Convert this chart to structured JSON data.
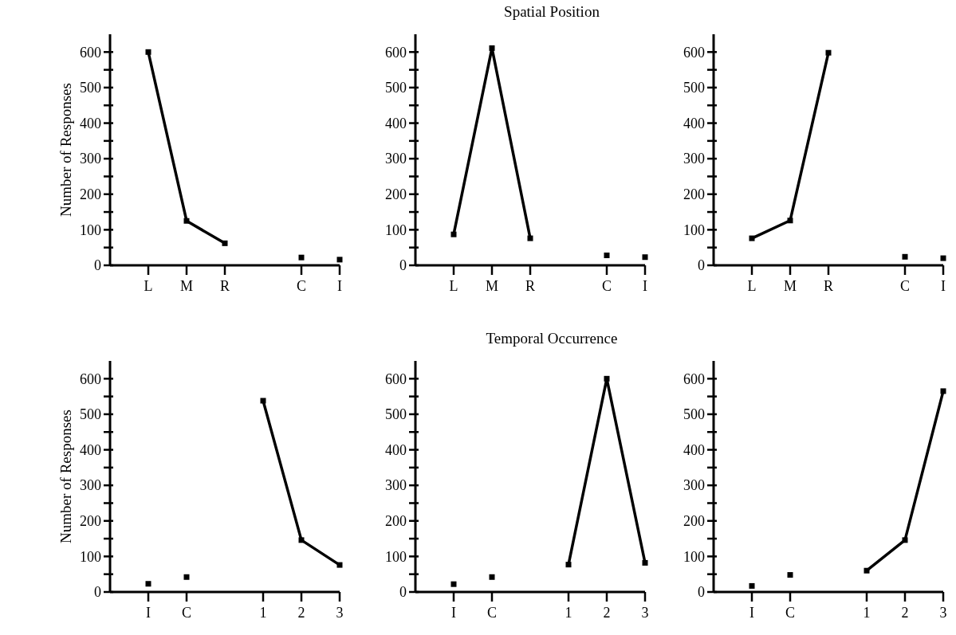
{
  "chart_data": [
    {
      "type": "line",
      "ylabel": "Number of Responses",
      "categories": [
        "L",
        "M",
        "R",
        null,
        "C",
        "I"
      ],
      "ylim": [
        0,
        650
      ],
      "yticks": [
        0,
        {
          "value": 50,
          "label": null
        },
        100,
        {
          "value": 150,
          "label": null
        },
        200,
        {
          "value": 250,
          "label": null
        },
        300,
        {
          "value": 350,
          "label": null
        },
        400,
        {
          "value": 450,
          "label": null
        },
        500,
        {
          "value": 550,
          "label": null
        },
        600
      ],
      "marker": "square",
      "series": [
        {
          "type": "line",
          "color": "#000000",
          "values": [
            600,
            125,
            62,
            null,
            null,
            null
          ]
        },
        {
          "type": "scatter",
          "color": "#000000",
          "values": [
            null,
            null,
            null,
            null,
            22,
            16
          ]
        }
      ]
    },
    {
      "type": "line",
      "title": "Spatial Position",
      "categories": [
        "L",
        "M",
        "R",
        null,
        "C",
        "I"
      ],
      "ylim": [
        0,
        650
      ],
      "yticks": [
        0,
        {
          "value": 50,
          "label": null
        },
        100,
        {
          "value": 150,
          "label": null
        },
        200,
        {
          "value": 250,
          "label": null
        },
        300,
        {
          "value": 350,
          "label": null
        },
        400,
        {
          "value": 450,
          "label": null
        },
        500,
        {
          "value": 550,
          "label": null
        },
        600
      ],
      "marker": "square",
      "series": [
        {
          "type": "line",
          "color": "#000000",
          "values": [
            87,
            611,
            76,
            null,
            null,
            null
          ]
        },
        {
          "type": "scatter",
          "color": "#000000",
          "values": [
            null,
            null,
            null,
            null,
            28,
            23
          ]
        }
      ]
    },
    {
      "type": "line",
      "categories": [
        "L",
        "M",
        "R",
        null,
        "C",
        "I"
      ],
      "ylim": [
        0,
        650
      ],
      "yticks": [
        0,
        {
          "value": 50,
          "label": null
        },
        100,
        {
          "value": 150,
          "label": null
        },
        200,
        {
          "value": 250,
          "label": null
        },
        300,
        {
          "value": 350,
          "label": null
        },
        400,
        {
          "value": 450,
          "label": null
        },
        500,
        {
          "value": 550,
          "label": null
        },
        600
      ],
      "marker": "square",
      "series": [
        {
          "type": "line",
          "color": "#000000",
          "values": [
            76,
            126,
            598,
            null,
            null,
            null
          ]
        },
        {
          "type": "scatter",
          "color": "#000000",
          "values": [
            null,
            null,
            null,
            null,
            24,
            20
          ]
        }
      ]
    },
    {
      "type": "line",
      "ylabel": "Number of Responses",
      "categories": [
        "I",
        "C",
        null,
        "1",
        "2",
        "3"
      ],
      "ylim": [
        0,
        650
      ],
      "yticks": [
        0,
        {
          "value": 50,
          "label": null
        },
        100,
        {
          "value": 150,
          "label": null
        },
        200,
        {
          "value": 250,
          "label": null
        },
        300,
        {
          "value": 350,
          "label": null
        },
        400,
        {
          "value": 450,
          "label": null
        },
        500,
        {
          "value": 550,
          "label": null
        },
        600
      ],
      "marker": "square",
      "series": [
        {
          "type": "scatter",
          "color": "#000000",
          "values": [
            23,
            42,
            null,
            null,
            null,
            null
          ]
        },
        {
          "type": "line",
          "color": "#000000",
          "values": [
            null,
            null,
            null,
            538,
            146,
            76
          ]
        }
      ]
    },
    {
      "type": "line",
      "title": "Temporal Occurrence",
      "categories": [
        "I",
        "C",
        null,
        "1",
        "2",
        "3"
      ],
      "ylim": [
        0,
        650
      ],
      "yticks": [
        0,
        {
          "value": 50,
          "label": null
        },
        100,
        {
          "value": 150,
          "label": null
        },
        200,
        {
          "value": 250,
          "label": null
        },
        300,
        {
          "value": 350,
          "label": null
        },
        400,
        {
          "value": 450,
          "label": null
        },
        500,
        {
          "value": 550,
          "label": null
        },
        600
      ],
      "marker": "square",
      "series": [
        {
          "type": "scatter",
          "color": "#000000",
          "values": [
            22,
            42,
            null,
            null,
            null,
            null
          ]
        },
        {
          "type": "line",
          "color": "#000000",
          "values": [
            null,
            null,
            null,
            77,
            600,
            82
          ]
        }
      ]
    },
    {
      "type": "line",
      "categories": [
        "I",
        "C",
        null,
        "1",
        "2",
        "3"
      ],
      "ylim": [
        0,
        650
      ],
      "yticks": [
        0,
        {
          "value": 50,
          "label": null
        },
        100,
        {
          "value": 150,
          "label": null
        },
        200,
        {
          "value": 250,
          "label": null
        },
        300,
        {
          "value": 350,
          "label": null
        },
        400,
        {
          "value": 450,
          "label": null
        },
        500,
        {
          "value": 550,
          "label": null
        },
        600
      ],
      "marker": "square",
      "series": [
        {
          "type": "scatter",
          "color": "#000000",
          "values": [
            17,
            48,
            null,
            null,
            null,
            null
          ]
        },
        {
          "type": "line",
          "color": "#000000",
          "values": [
            null,
            null,
            null,
            60,
            146,
            565
          ]
        }
      ]
    }
  ]
}
